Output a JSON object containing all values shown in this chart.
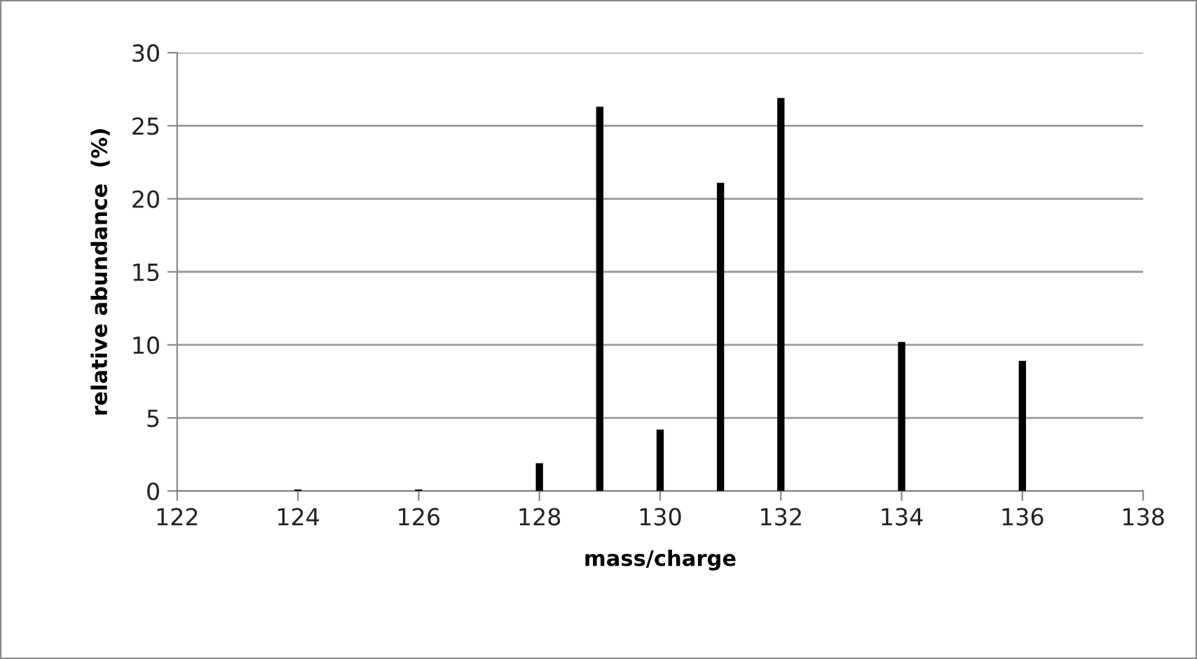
{
  "chart_data": {
    "type": "bar",
    "xlabel": "mass/charge",
    "ylabel": "relative abundance  (%)",
    "x": [
      124,
      126,
      128,
      129,
      130,
      131,
      132,
      134,
      136
    ],
    "values": [
      0.1,
      0.1,
      1.9,
      26.3,
      4.2,
      21.1,
      26.9,
      10.2,
      8.9
    ],
    "color": "#000000",
    "xlim": [
      122,
      138
    ],
    "xticks": [
      122,
      124,
      126,
      128,
      130,
      132,
      134,
      136,
      138
    ],
    "ylim": [
      0,
      30
    ],
    "yticks": [
      0,
      5,
      10,
      15,
      20,
      25,
      30
    ],
    "grid": "y"
  }
}
